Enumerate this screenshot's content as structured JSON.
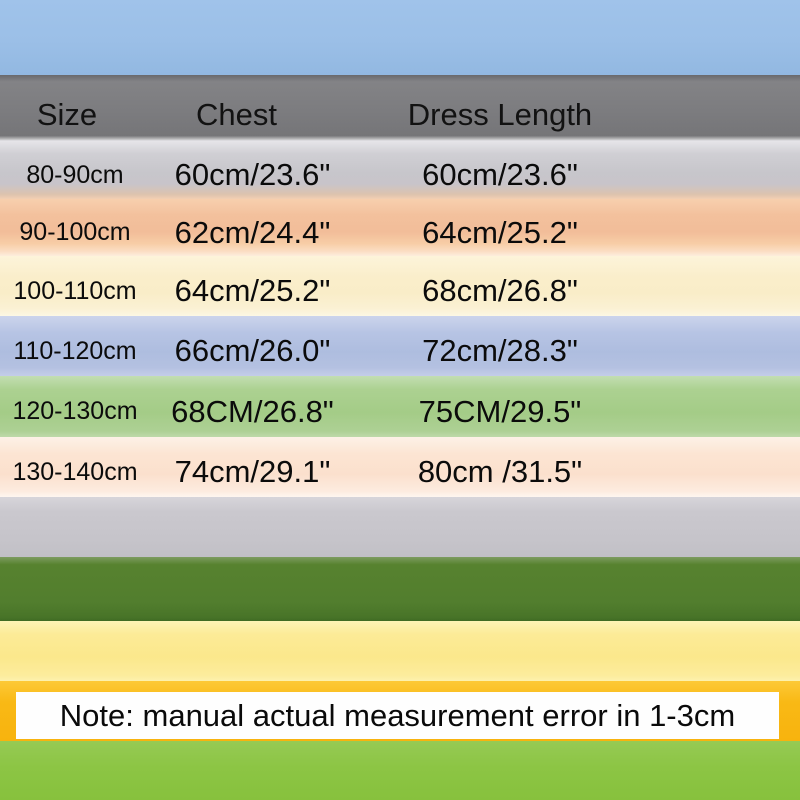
{
  "table": {
    "headers": [
      "Size",
      "Chest",
      "Dress Length"
    ],
    "rows": [
      {
        "size": "80-90cm",
        "chest": "60cm/23.6\"",
        "dress_length": "60cm/23.6\""
      },
      {
        "size": "90-100cm",
        "chest": "62cm/24.4\"",
        "dress_length": "64cm/25.2\""
      },
      {
        "size": "100-110cm",
        "chest": "64cm/25.2\"",
        "dress_length": "68cm/26.8\""
      },
      {
        "size": "110-120cm",
        "chest": "66cm/26.0\"",
        "dress_length": "72cm/28.3\""
      },
      {
        "size": "120-130cm",
        "chest": "68CM/26.8\"",
        "dress_length": "75CM/29.5\""
      },
      {
        "size": "130-140cm",
        "chest": "74cm/29.1\"",
        "dress_length": "80cm /31.5\""
      }
    ]
  },
  "note": "Note: manual actual measurement error in 1-3cm",
  "colors": {
    "top_banner": "#9bbfe7",
    "header_bg": "#7c7c7f",
    "row_silver": "#c7c6cb",
    "row_peach": "#f2bd99",
    "row_cream": "#f9edc8",
    "row_periwinkle": "#aebddf",
    "row_green": "#a4cc87",
    "row_pink": "#fbe0cd",
    "band_gray": "#c6c4ca",
    "band_dark_green": "#527e2e",
    "band_yellow": "#fbe88c",
    "band_amber": "#f9b915",
    "note_bg": "#fefefe",
    "band_bottom_green": "#8cc544",
    "text": "#000000"
  }
}
